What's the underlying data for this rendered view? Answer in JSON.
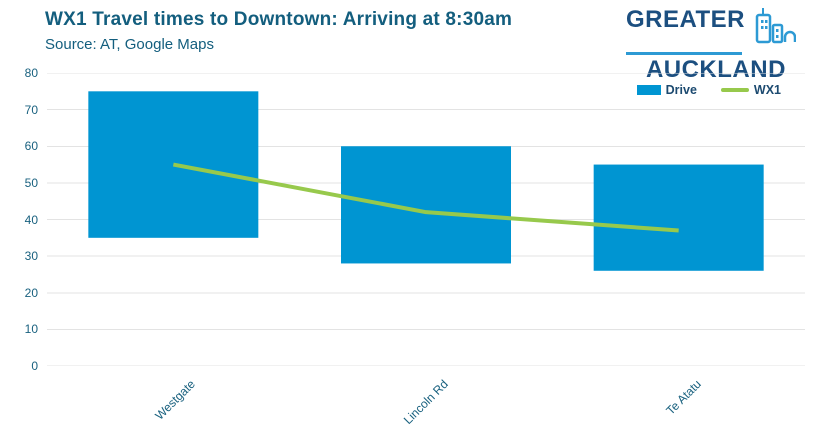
{
  "header": {
    "title": "WX1 Travel times to Downtown: Arriving at 8:30am",
    "source": "Source: AT, Google Maps"
  },
  "logo": {
    "line1": "GREATER",
    "line2": "AUCKLAND",
    "icon": "city-skyline-icon"
  },
  "chart_data": {
    "type": "bar",
    "subtype": "floating-range-bars-with-line",
    "title": "WX1 Travel times to Downtown: Arriving at 8:30am",
    "categories": [
      "Westgate",
      "Lincoln Rd",
      "Te Atatu"
    ],
    "series": [
      {
        "name": "Drive",
        "type": "range-bar",
        "color": "#0095d2",
        "low": [
          35,
          28,
          26
        ],
        "high": [
          75,
          60,
          55
        ]
      },
      {
        "name": "WX1",
        "type": "line",
        "color": "#97c94c",
        "values": [
          55,
          42,
          37
        ]
      }
    ],
    "xlabel": "",
    "ylabel": "",
    "ylim": [
      0,
      80
    ],
    "yticks": [
      0,
      10,
      20,
      30,
      40,
      50,
      60,
      70,
      80
    ],
    "grid": "horizontal",
    "legend_position": "top-right"
  },
  "colors": {
    "title_text": "#135e7e",
    "axis_text": "#19617f",
    "legend_text": "#1c4a70",
    "gridline": "#e3e3e3",
    "logo_navy": "#1c4f80",
    "logo_blue": "#2d9ad4",
    "bar_blue": "#0095d2",
    "line_green": "#97c94c"
  }
}
